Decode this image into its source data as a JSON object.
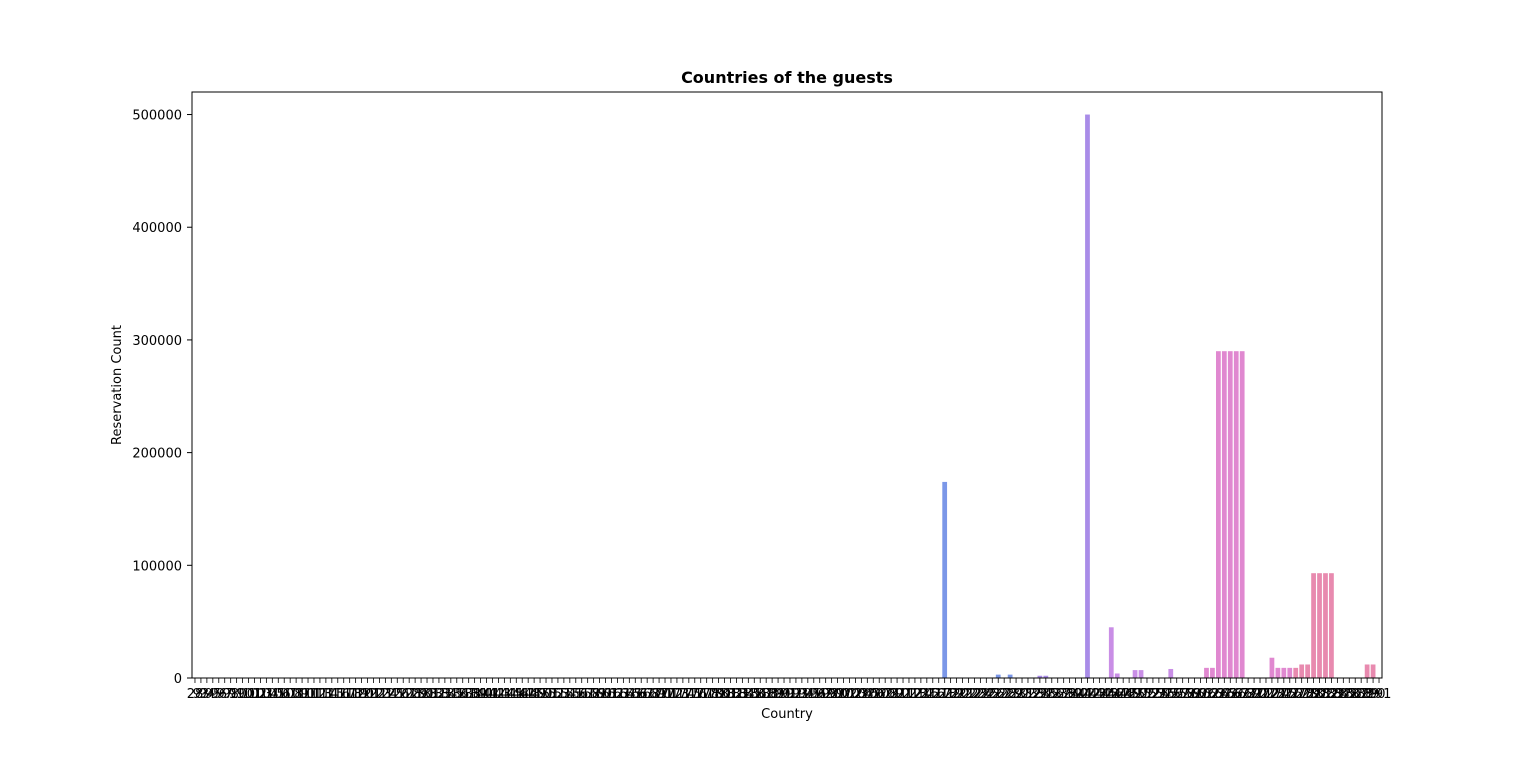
{
  "chart_data": {
    "type": "bar",
    "title": "Countries of the guests",
    "xlabel": "Country",
    "ylabel": "Reservation Count",
    "ylim": [
      0,
      520000
    ],
    "yticks": [
      0,
      100000,
      200000,
      300000,
      400000,
      500000
    ],
    "grid": false,
    "legend": "none",
    "category_count": 200,
    "categories": [
      "28",
      "93",
      "94",
      "95",
      "96",
      "97",
      "98",
      "99",
      "100",
      "101",
      "102",
      "103",
      "104",
      "105",
      "106",
      "107",
      "108",
      "109",
      "110",
      "111",
      "112",
      "113",
      "114",
      "115",
      "116",
      "117",
      "118",
      "119",
      "120",
      "121",
      "122",
      "123",
      "124",
      "125",
      "126",
      "127",
      "128",
      "129",
      "130",
      "131",
      "132",
      "133",
      "134",
      "135",
      "136",
      "137",
      "138",
      "139",
      "140",
      "141",
      "142",
      "143",
      "144",
      "145",
      "146",
      "147",
      "148",
      "149",
      "150",
      "151",
      "152",
      "153",
      "154",
      "155",
      "156",
      "157",
      "158",
      "159",
      "160",
      "161",
      "162",
      "163",
      "164",
      "165",
      "166",
      "167",
      "168",
      "169",
      "170",
      "171",
      "172",
      "173",
      "174",
      "175",
      "176",
      "177",
      "178",
      "179",
      "180",
      "181",
      "182",
      "183",
      "184",
      "185",
      "186",
      "187",
      "188",
      "189",
      "190",
      "191",
      "192",
      "193",
      "194",
      "195",
      "196",
      "197",
      "198",
      "199",
      "200",
      "201",
      "202",
      "203",
      "204",
      "205",
      "206",
      "207",
      "208",
      "209",
      "210",
      "211",
      "212",
      "213",
      "214",
      "215",
      "216",
      "217",
      "218",
      "219",
      "220",
      "221",
      "222",
      "223",
      "224",
      "225",
      "226",
      "227",
      "228",
      "229",
      "230",
      "231",
      "232",
      "233",
      "234",
      "235",
      "236",
      "237",
      "238",
      "239",
      "240",
      "241",
      "242",
      "243",
      "244",
      "245",
      "246",
      "247",
      "248",
      "249",
      "250",
      "251",
      "252",
      "253",
      "254",
      "255",
      "256",
      "257",
      "258",
      "259",
      "260",
      "261",
      "262",
      "263",
      "264",
      "265",
      "266",
      "267",
      "268",
      "269",
      "270",
      "271",
      "272",
      "273",
      "274",
      "275",
      "276",
      "277",
      "278",
      "279",
      "280",
      "281",
      "282",
      "283",
      "284",
      "285",
      "286",
      "287",
      "288",
      "289",
      "290",
      "291",
      "292",
      "293",
      "294",
      "295",
      "296",
      "297",
      "298",
      "299",
      "300",
      "301",
      "302",
      "303",
      "304",
      "305",
      "306",
      "307",
      "308",
      "309",
      "310",
      "311",
      "312",
      "313",
      "314",
      "315",
      "316",
      "317",
      "318",
      "319",
      "320",
      "321",
      "322",
      "323",
      "324",
      "325",
      "58"
    ],
    "values": {
      "126": 174000,
      "135": 3000,
      "137": 3000,
      "142": 2000,
      "143": 2000,
      "150": 500000,
      "154": 45000,
      "155": 4000,
      "158": 7000,
      "159": 7000,
      "164": 8000,
      "170": 9000,
      "171": 9000,
      "172": 290000,
      "173": 290000,
      "174": 290000,
      "175": 290000,
      "176": 290000,
      "181": 18000,
      "182": 9000,
      "183": 9000,
      "184": 9000,
      "185": 9000,
      "186": 12000,
      "187": 12000,
      "188": 93000,
      "189": 93000,
      "190": 93000,
      "191": 93000,
      "197": 12000,
      "198": 12000
    },
    "palette": [
      "#e8857a",
      "#d89b55",
      "#b5a844",
      "#8db24d",
      "#55b855",
      "#4bb98f",
      "#4bb7b2",
      "#55a9d4",
      "#7b97e8",
      "#a98ce8",
      "#c98ee6",
      "#e088d0",
      "#e88aaf"
    ]
  }
}
